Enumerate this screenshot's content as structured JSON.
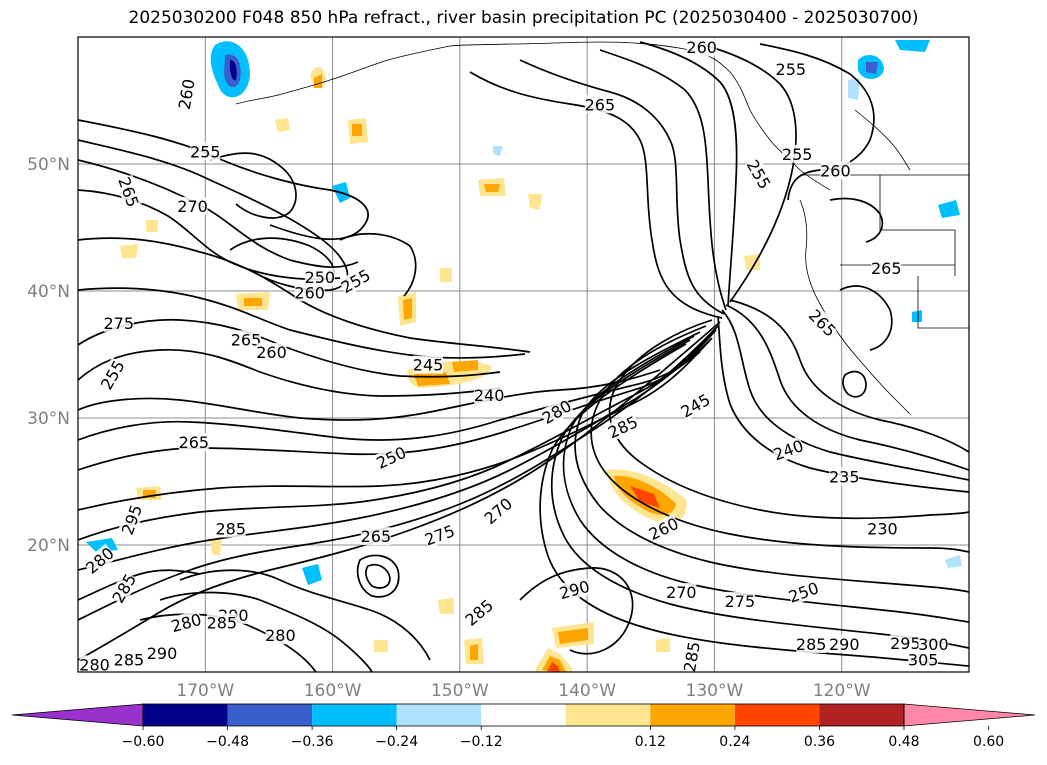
{
  "title": "2025030200 F048 850 hPa refract., river basin precipitation PC (2025030400 - 2025030700)",
  "map": {
    "projection": "equidistant-cylindrical",
    "lon_range": [
      -180,
      -110
    ],
    "lat_range": [
      10,
      60
    ],
    "gridlines": true,
    "lat_ticks": [
      {
        "lat": 50,
        "label": "50°N"
      },
      {
        "lat": 40,
        "label": "40°N"
      },
      {
        "lat": 30,
        "label": "30°N"
      },
      {
        "lat": 20,
        "label": "20°N"
      }
    ],
    "lon_ticks": [
      {
        "lon": -170,
        "label": "170°W"
      },
      {
        "lon": -160,
        "label": "160°W"
      },
      {
        "lon": -150,
        "label": "150°W"
      },
      {
        "lon": -140,
        "label": "140°W"
      },
      {
        "lon": -130,
        "label": "130°W"
      },
      {
        "lon": -120,
        "label": "120°W"
      }
    ]
  },
  "contour_labels": [
    {
      "text": "260",
      "lon": -171.5,
      "lat": 55.5,
      "rot": -80
    },
    {
      "text": "260",
      "lon": -131,
      "lat": 59.2
    },
    {
      "text": "255",
      "lon": -124,
      "lat": 57.5
    },
    {
      "text": "265",
      "lon": -139,
      "lat": 54.7
    },
    {
      "text": "255",
      "lon": -170,
      "lat": 51.0
    },
    {
      "text": "265",
      "lon": -176,
      "lat": 47.8,
      "rot": 70
    },
    {
      "text": "270",
      "lon": -171,
      "lat": 46.7
    },
    {
      "text": "255",
      "lon": -123.5,
      "lat": 50.8
    },
    {
      "text": "260",
      "lon": -120.5,
      "lat": 49.5
    },
    {
      "text": "255",
      "lon": -126.5,
      "lat": 49.2,
      "rot": 60
    },
    {
      "text": "265",
      "lon": -116.5,
      "lat": 41.8
    },
    {
      "text": "250",
      "lon": -161,
      "lat": 41.1
    },
    {
      "text": "255",
      "lon": -158.2,
      "lat": 40.8,
      "rot": -30
    },
    {
      "text": "260",
      "lon": -161.8,
      "lat": 39.9
    },
    {
      "text": "275",
      "lon": -176.8,
      "lat": 37.5
    },
    {
      "text": "265",
      "lon": -166.8,
      "lat": 36.2
    },
    {
      "text": "260",
      "lon": -164.8,
      "lat": 35.2
    },
    {
      "text": "245",
      "lon": -152.5,
      "lat": 34.2
    },
    {
      "text": "255",
      "lon": -177.3,
      "lat": 33.4,
      "rot": -60
    },
    {
      "text": "240",
      "lon": -147.7,
      "lat": 31.8
    },
    {
      "text": "265",
      "lon": -121.5,
      "lat": 37.5,
      "rot": 45
    },
    {
      "text": "280",
      "lon": -142.4,
      "lat": 30.5,
      "rot": -30
    },
    {
      "text": "285",
      "lon": -137.2,
      "lat": 29.3,
      "rot": -25
    },
    {
      "text": "245",
      "lon": -131.5,
      "lat": 31.0,
      "rot": -30
    },
    {
      "text": "265",
      "lon": -170.9,
      "lat": 28.1
    },
    {
      "text": "250",
      "lon": -155.4,
      "lat": 26.9,
      "rot": -25
    },
    {
      "text": "240",
      "lon": -124.2,
      "lat": 27.5,
      "rot": -20
    },
    {
      "text": "235",
      "lon": -119.8,
      "lat": 25.4
    },
    {
      "text": "270",
      "lon": -147.0,
      "lat": 22.7,
      "rot": -40
    },
    {
      "text": "295",
      "lon": -175.8,
      "lat": 22.0,
      "rot": -70
    },
    {
      "text": "285",
      "lon": -168.0,
      "lat": 21.3
    },
    {
      "text": "265",
      "lon": -156.6,
      "lat": 20.7
    },
    {
      "text": "275",
      "lon": -151.6,
      "lat": 20.8,
      "rot": -20
    },
    {
      "text": "260",
      "lon": -134.0,
      "lat": 21.3,
      "rot": -25
    },
    {
      "text": "230",
      "lon": -116.8,
      "lat": 21.3
    },
    {
      "text": "280",
      "lon": -178.3,
      "lat": 18.8,
      "rot": -40
    },
    {
      "text": "285",
      "lon": -176.4,
      "lat": 16.6,
      "rot": -60
    },
    {
      "text": "290",
      "lon": -141.0,
      "lat": 16.5,
      "rot": -15
    },
    {
      "text": "270",
      "lon": -132.6,
      "lat": 16.3
    },
    {
      "text": "275",
      "lon": -128.0,
      "lat": 15.6
    },
    {
      "text": "250",
      "lon": -123.0,
      "lat": 16.3,
      "rot": -20
    },
    {
      "text": "285",
      "lon": -148.5,
      "lat": 14.7,
      "rot": -40
    },
    {
      "text": "280",
      "lon": -171.5,
      "lat": 13.9,
      "rot": -15
    },
    {
      "text": "290",
      "lon": -167.8,
      "lat": 14.5
    },
    {
      "text": "285",
      "lon": -168.7,
      "lat": 13.9
    },
    {
      "text": "280",
      "lon": -164.1,
      "lat": 12.9
    },
    {
      "text": "290",
      "lon": -173.4,
      "lat": 11.5
    },
    {
      "text": "285",
      "lon": -176.0,
      "lat": 11.0
    },
    {
      "text": "280",
      "lon": -178.7,
      "lat": 10.6
    },
    {
      "text": "285",
      "lon": -131.8,
      "lat": 11.2,
      "rot": -80
    },
    {
      "text": "285",
      "lon": -122.4,
      "lat": 12.2
    },
    {
      "text": "290",
      "lon": -119.8,
      "lat": 12.2
    },
    {
      "text": "295",
      "lon": -115.0,
      "lat": 12.3
    },
    {
      "text": "300",
      "lon": -112.8,
      "lat": 12.2
    },
    {
      "text": "305",
      "lon": -113.6,
      "lat": 11.0
    }
  ],
  "colorbar": {
    "extend": "both",
    "ticks": [
      "−0.60",
      "−0.48",
      "−0.36",
      "−0.24",
      "−0.12",
      "0.12",
      "0.24",
      "0.36",
      "0.48",
      "0.60"
    ],
    "colors": [
      "#9932cc",
      "#00008b",
      "#3a5fcd",
      "#00bfff",
      "#b0e2ff",
      "#ffffff",
      "#ffe58f",
      "#ffa500",
      "#ff4500",
      "#b22222",
      "#ff88aa"
    ]
  }
}
